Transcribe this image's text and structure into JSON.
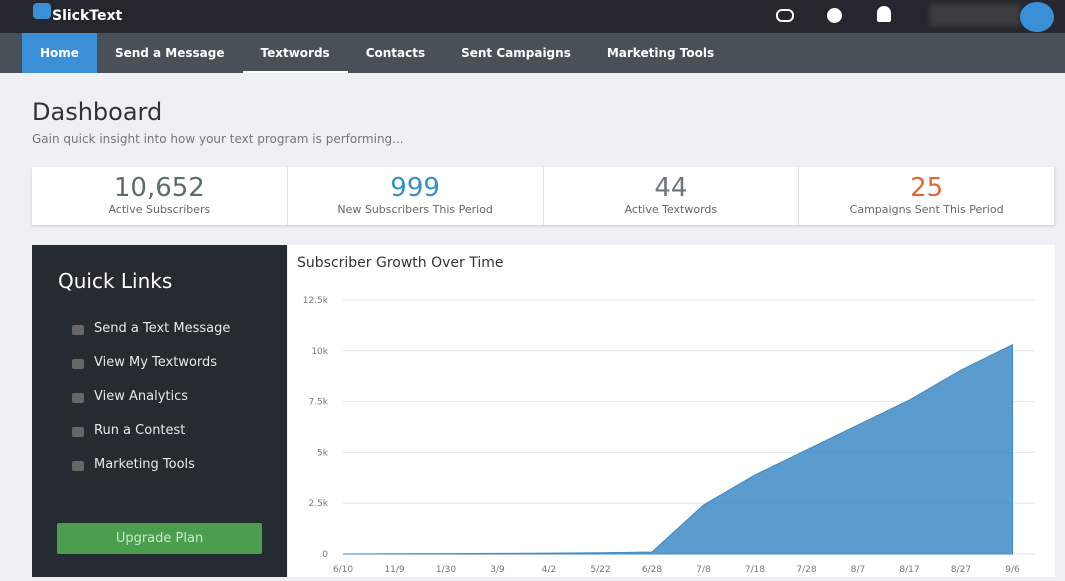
{
  "header": {
    "brand": "SlickText"
  },
  "nav": [
    "Home",
    "Send a Message",
    "Textwords",
    "Contacts",
    "Sent Campaigns",
    "Marketing Tools"
  ],
  "page": {
    "title": "Dashboard",
    "subtitle": "Gain quick insight into how your text program is performing..."
  },
  "stats": [
    {
      "value": "10,652",
      "label": "Active Subscribers"
    },
    {
      "value": "999",
      "label": "New Subscribers This Period"
    },
    {
      "value": "44",
      "label": "Active Textwords"
    },
    {
      "value": "25",
      "label": "Campaigns Sent This Period"
    }
  ],
  "quick_links": {
    "title": "Quick Links",
    "items": [
      "Send a Text Message",
      "View My Textwords",
      "View Analytics",
      "Run a Contest",
      "Marketing Tools"
    ],
    "button": "Upgrade Plan"
  },
  "chart_data": {
    "type": "area",
    "title": "Subscriber Growth Over Time",
    "categories": [
      "6/10",
      "11/9",
      "1/30",
      "3/9",
      "4/2",
      "5/22",
      "6/28",
      "7/8",
      "7/18",
      "7/28",
      "8/7",
      "8/17",
      "8/27",
      "9/6"
    ],
    "values": [
      0,
      10,
      20,
      30,
      40,
      60,
      100,
      2410,
      3890,
      5120,
      6350,
      7580,
      9050,
      10300
    ],
    "color": "#3f8ac4",
    "ylim": [
      0,
      12500
    ],
    "yticks": [
      0,
      {
        "value": 2500,
        "label": "2.5k"
      },
      {
        "value": 5000,
        "label": "5k"
      },
      {
        "value": 7500,
        "label": "7.5k"
      },
      {
        "value": 10000,
        "label": "10k"
      },
      {
        "value": 12500,
        "label": "12.5k"
      }
    ],
    "grid": true
  }
}
